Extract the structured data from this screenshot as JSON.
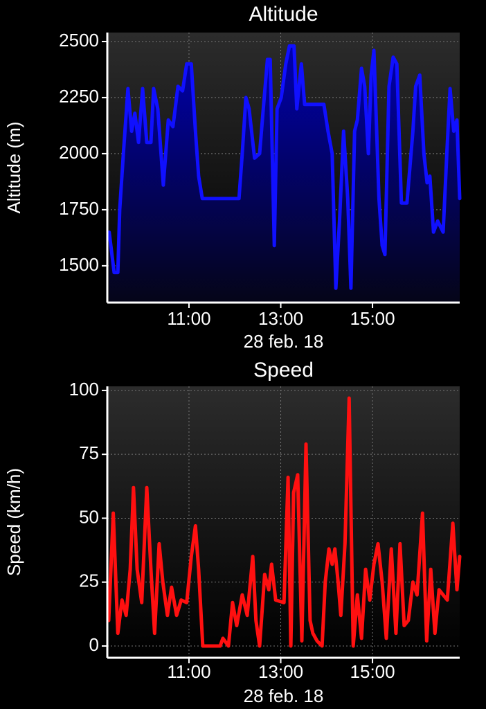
{
  "chart_data": [
    {
      "type": "line",
      "title": "Altitude",
      "xlabel": "28 feb. 18",
      "ylabel": "Altitude (m)",
      "color": "#1010ff",
      "fill": true,
      "grid": true,
      "xlim": [
        9.22,
        16.9
      ],
      "xticks": [
        {
          "value": 11,
          "label": "11:00"
        },
        {
          "value": 13,
          "label": "13:00"
        },
        {
          "value": 15,
          "label": "15:00"
        }
      ],
      "ylim": [
        1336,
        2540
      ],
      "yticks": [
        1500,
        1750,
        2000,
        2250,
        2500
      ],
      "x": [
        9.26,
        9.37,
        9.45,
        9.49,
        9.57,
        9.67,
        9.75,
        9.82,
        9.9,
        9.99,
        10.08,
        10.17,
        10.23,
        10.32,
        10.44,
        10.55,
        10.65,
        10.76,
        10.86,
        10.95,
        11.05,
        11.14,
        11.21,
        11.29,
        12.09,
        12.16,
        12.24,
        12.31,
        12.43,
        12.54,
        12.62,
        12.71,
        12.77,
        12.86,
        12.92,
        13.01,
        13.11,
        13.19,
        13.29,
        13.35,
        13.45,
        13.52,
        13.94,
        14.03,
        14.12,
        14.2,
        14.28,
        14.37,
        14.46,
        14.53,
        14.61,
        14.67,
        14.76,
        14.83,
        14.91,
        14.97,
        15.03,
        15.14,
        15.21,
        15.27,
        15.36,
        15.45,
        15.53,
        15.63,
        15.75,
        15.88,
        15.94,
        16.03,
        16.12,
        16.19,
        16.25,
        16.33,
        16.42,
        16.54,
        16.62,
        16.69,
        16.77,
        16.84,
        16.9
      ],
      "values": [
        1650,
        1470,
        1470,
        1750,
        2000,
        2290,
        2100,
        2180,
        2050,
        2290,
        2050,
        2050,
        2290,
        2200,
        1860,
        2150,
        2120,
        2300,
        2280,
        2400,
        2400,
        2100,
        1900,
        1800,
        1800,
        2000,
        2250,
        2200,
        1980,
        2000,
        2200,
        2420,
        2420,
        1590,
        2200,
        2250,
        2400,
        2480,
        2480,
        2200,
        2400,
        2220,
        2220,
        2100,
        2000,
        1400,
        1700,
        2100,
        1800,
        1400,
        2100,
        2150,
        2380,
        2300,
        2000,
        2350,
        2460,
        1800,
        1590,
        1550,
        2300,
        2430,
        2400,
        1780,
        1780,
        2100,
        2300,
        2350,
        2000,
        1870,
        1900,
        1650,
        1700,
        1650,
        2000,
        2290,
        2100,
        2150,
        1800
      ]
    },
    {
      "type": "line",
      "title": "Speed",
      "xlabel": "28 feb. 18",
      "ylabel": "Speed (km/h)",
      "color": "#ff1010",
      "fill": false,
      "grid": true,
      "xlim": [
        9.22,
        16.9
      ],
      "xticks": [
        {
          "value": 11,
          "label": "11:00"
        },
        {
          "value": 13,
          "label": "13:00"
        },
        {
          "value": 15,
          "label": "15:00"
        }
      ],
      "ylim": [
        -4.6,
        101.6
      ],
      "yticks": [
        0,
        25,
        50,
        75,
        100
      ],
      "x": [
        9.25,
        9.35,
        9.45,
        9.54,
        9.63,
        9.72,
        9.79,
        9.87,
        9.97,
        10.08,
        10.17,
        10.25,
        10.35,
        10.43,
        10.53,
        10.62,
        10.73,
        10.83,
        10.95,
        11.05,
        11.14,
        11.21,
        11.3,
        11.68,
        11.74,
        11.86,
        11.95,
        12.04,
        12.16,
        12.27,
        12.39,
        12.46,
        12.54,
        12.65,
        12.74,
        12.8,
        12.89,
        13.07,
        13.16,
        13.22,
        13.28,
        13.37,
        13.46,
        13.55,
        13.64,
        13.7,
        13.79,
        13.9,
        13.97,
        14.05,
        14.12,
        14.18,
        14.25,
        14.31,
        14.4,
        14.49,
        14.58,
        14.67,
        14.76,
        14.85,
        14.94,
        15.03,
        15.12,
        15.21,
        15.3,
        15.41,
        15.51,
        15.6,
        15.69,
        15.78,
        15.88,
        15.97,
        16.09,
        16.18,
        16.27,
        16.36,
        16.45,
        16.54,
        16.63,
        16.75,
        16.84,
        16.9
      ],
      "values": [
        10,
        52,
        5,
        18,
        12,
        30,
        62,
        30,
        17,
        62,
        30,
        5,
        40,
        25,
        12,
        23,
        12,
        18,
        17,
        35,
        47,
        30,
        0,
        0,
        3,
        0,
        17,
        8,
        20,
        12,
        35,
        10,
        0,
        28,
        22,
        32,
        18,
        17,
        66,
        0,
        60,
        67,
        2,
        79,
        10,
        5,
        2,
        0,
        25,
        38,
        32,
        38,
        25,
        12,
        40,
        97,
        0,
        20,
        3,
        30,
        18,
        32,
        40,
        25,
        3,
        38,
        5,
        40,
        8,
        10,
        25,
        20,
        52,
        2,
        30,
        5,
        22,
        20,
        18,
        48,
        22,
        35
      ]
    }
  ]
}
